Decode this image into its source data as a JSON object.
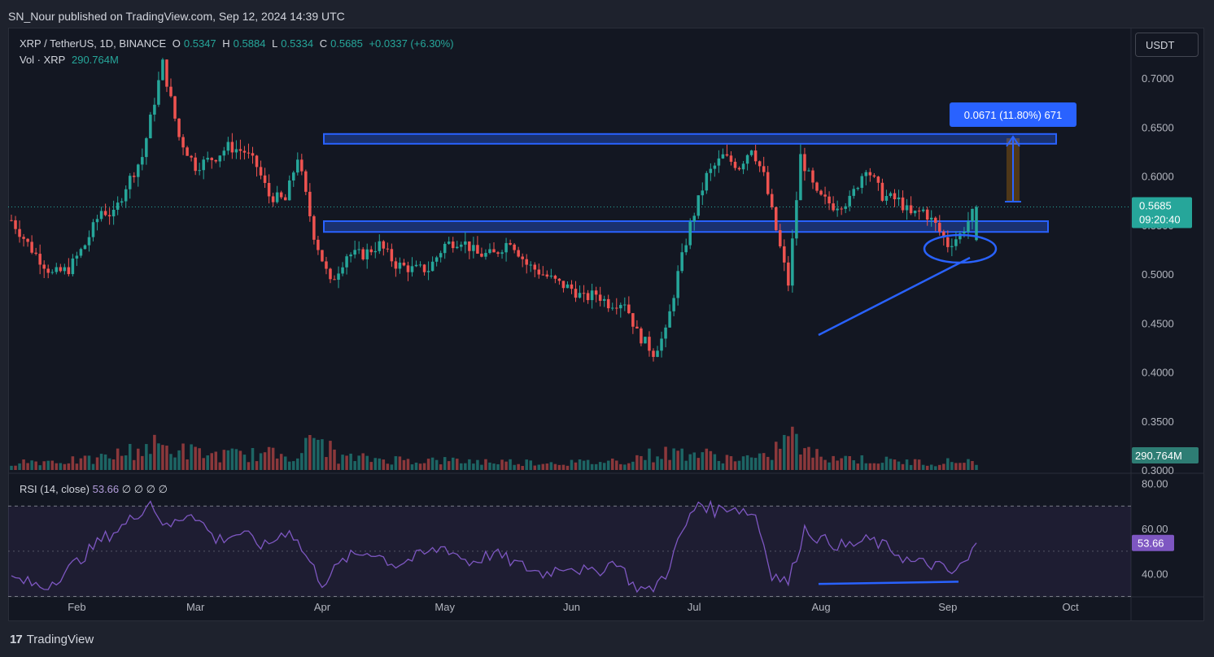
{
  "header": {
    "published": "SN_Nour published on TradingView.com, Sep 12, 2024 14:39 UTC"
  },
  "legend": {
    "symbol": "XRP / TetherUS, 1D, BINANCE",
    "open_label": "O",
    "open": "0.5347",
    "high_label": "H",
    "high": "0.5884",
    "low_label": "L",
    "low": "0.5334",
    "close_label": "C",
    "close": "0.5685",
    "change": "+0.0337 (+6.30%)",
    "vol_label": "Vol · XRP",
    "vol": "290.764M"
  },
  "currency_button": "USDT",
  "rsi_legend": {
    "label": "RSI (14, close)",
    "value": "53.66",
    "extras": "∅ ∅ ∅ ∅"
  },
  "footer": {
    "brand": "TradingView",
    "logo": "17"
  },
  "colors": {
    "up": "#26a69a",
    "down": "#ef5350",
    "rsi": "#7e57c2",
    "drawing": "#2962ff",
    "bg": "#131722"
  },
  "chart_data": {
    "type": "candlestick",
    "price_axis": {
      "ticks": [
        "0.7000",
        "0.6500",
        "0.6000",
        "0.5500",
        "0.5000",
        "0.4500",
        "0.4000",
        "0.3500",
        "0.3000"
      ],
      "range": [
        0.3,
        0.72
      ]
    },
    "x_ticks": [
      "Feb",
      "Mar",
      "Apr",
      "May",
      "Jun",
      "Jul",
      "Aug",
      "Sep",
      "Oct"
    ],
    "last_price": {
      "value": "0.5685",
      "countdown": "09:20:40"
    },
    "volume_label": "290.764M",
    "rsi_axis": {
      "ticks": [
        "80.00",
        "60.00",
        "40.00"
      ],
      "band": [
        30,
        70
      ],
      "mid": 50
    },
    "rsi_label": "53.66",
    "measure_label": "0.0671 (11.80%) 671",
    "zones": [
      {
        "from": 0.633,
        "to": 0.643
      },
      {
        "from": 0.543,
        "to": 0.554
      }
    ],
    "price_path": [
      [
        0,
        0.555
      ],
      [
        5,
        0.525
      ],
      [
        10,
        0.5
      ],
      [
        14,
        0.505
      ],
      [
        18,
        0.53
      ],
      [
        22,
        0.565
      ],
      [
        25,
        0.56
      ],
      [
        28,
        0.59
      ],
      [
        32,
        0.62
      ],
      [
        37,
        0.715
      ],
      [
        41,
        0.64
      ],
      [
        45,
        0.61
      ],
      [
        50,
        0.62
      ],
      [
        53,
        0.63
      ],
      [
        57,
        0.625
      ],
      [
        60,
        0.61
      ],
      [
        63,
        0.58
      ],
      [
        67,
        0.575
      ],
      [
        70,
        0.62
      ],
      [
        74,
        0.54
      ],
      [
        78,
        0.49
      ],
      [
        82,
        0.52
      ],
      [
        86,
        0.52
      ],
      [
        90,
        0.53
      ],
      [
        94,
        0.51
      ],
      [
        98,
        0.505
      ],
      [
        102,
        0.505
      ],
      [
        106,
        0.53
      ],
      [
        110,
        0.535
      ],
      [
        114,
        0.52
      ],
      [
        118,
        0.52
      ],
      [
        122,
        0.535
      ],
      [
        126,
        0.51
      ],
      [
        130,
        0.5
      ],
      [
        134,
        0.49
      ],
      [
        137,
        0.485
      ],
      [
        140,
        0.475
      ],
      [
        143,
        0.48
      ],
      [
        146,
        0.47
      ],
      [
        150,
        0.472
      ],
      [
        153,
        0.44
      ],
      [
        157,
        0.42
      ],
      [
        160,
        0.44
      ],
      [
        163,
        0.5
      ],
      [
        166,
        0.55
      ],
      [
        170,
        0.6
      ],
      [
        174,
        0.62
      ],
      [
        178,
        0.61
      ],
      [
        181,
        0.63
      ],
      [
        184,
        0.6
      ],
      [
        187,
        0.545
      ],
      [
        190,
        0.49
      ],
      [
        193,
        0.62
      ],
      [
        197,
        0.58
      ],
      [
        201,
        0.57
      ],
      [
        205,
        0.575
      ],
      [
        209,
        0.61
      ],
      [
        213,
        0.58
      ],
      [
        217,
        0.575
      ],
      [
        220,
        0.56
      ],
      [
        223,
        0.565
      ],
      [
        226,
        0.55
      ],
      [
        229,
        0.53
      ],
      [
        232,
        0.54
      ],
      [
        236,
        0.5685
      ]
    ],
    "volume_path": [
      [
        0,
        10
      ],
      [
        20,
        12
      ],
      [
        35,
        30
      ],
      [
        40,
        25
      ],
      [
        50,
        18
      ],
      [
        70,
        20
      ],
      [
        75,
        40
      ],
      [
        80,
        15
      ],
      [
        100,
        12
      ],
      [
        120,
        10
      ],
      [
        140,
        9
      ],
      [
        150,
        12
      ],
      [
        155,
        18
      ],
      [
        165,
        22
      ],
      [
        175,
        15
      ],
      [
        185,
        14
      ],
      [
        190,
        45
      ],
      [
        195,
        20
      ],
      [
        210,
        12
      ],
      [
        225,
        9
      ],
      [
        236,
        12
      ]
    ],
    "rsi_path": [
      [
        0,
        38
      ],
      [
        8,
        34
      ],
      [
        14,
        42
      ],
      [
        22,
        55
      ],
      [
        28,
        62
      ],
      [
        34,
        72
      ],
      [
        38,
        60
      ],
      [
        44,
        68
      ],
      [
        50,
        55
      ],
      [
        56,
        58
      ],
      [
        62,
        52
      ],
      [
        68,
        60
      ],
      [
        72,
        48
      ],
      [
        76,
        36
      ],
      [
        82,
        47
      ],
      [
        88,
        50
      ],
      [
        94,
        44
      ],
      [
        100,
        48
      ],
      [
        106,
        52
      ],
      [
        112,
        45
      ],
      [
        118,
        49
      ],
      [
        124,
        44
      ],
      [
        130,
        40
      ],
      [
        136,
        44
      ],
      [
        142,
        40
      ],
      [
        148,
        46
      ],
      [
        152,
        35
      ],
      [
        156,
        32
      ],
      [
        160,
        40
      ],
      [
        164,
        58
      ],
      [
        168,
        72
      ],
      [
        172,
        68
      ],
      [
        176,
        70
      ],
      [
        182,
        66
      ],
      [
        186,
        40
      ],
      [
        190,
        36
      ],
      [
        194,
        60
      ],
      [
        198,
        55
      ],
      [
        204,
        52
      ],
      [
        210,
        55
      ],
      [
        216,
        50
      ],
      [
        220,
        45
      ],
      [
        226,
        44
      ],
      [
        230,
        40
      ],
      [
        234,
        46
      ],
      [
        236,
        53.66
      ]
    ]
  }
}
